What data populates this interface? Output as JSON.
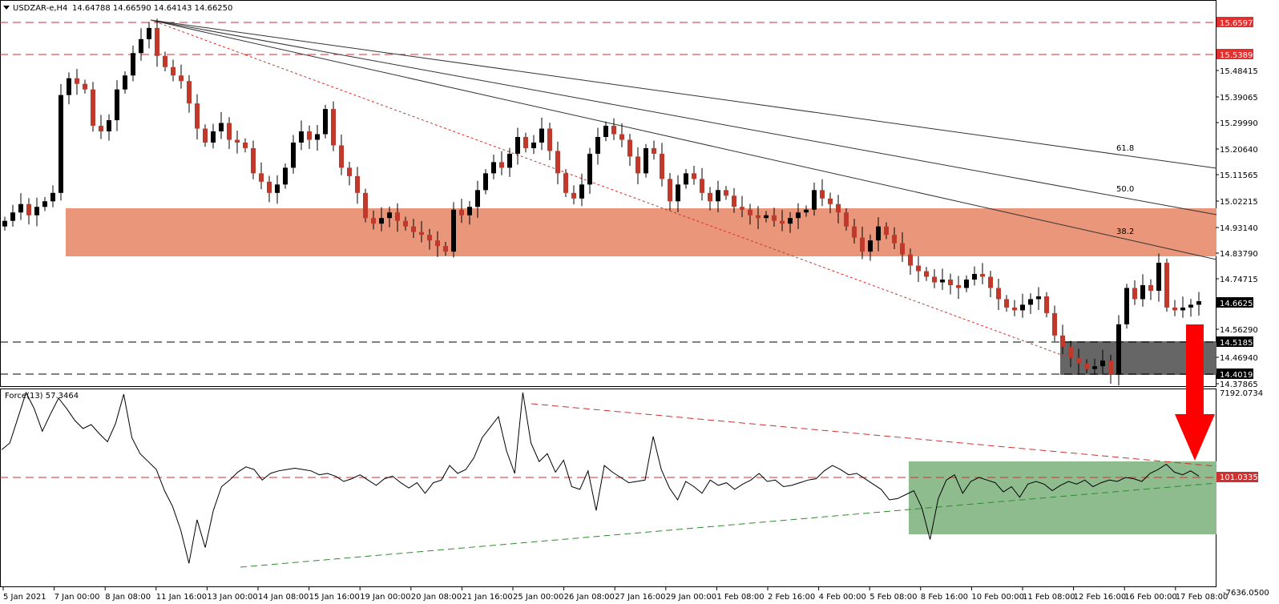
{
  "header": {
    "symbol": "USDZAR-e,H4",
    "ohlc": "14.64788 14.66590 14.64143 14.66250"
  },
  "indicator": {
    "label": "Force(13) 57.3464",
    "axis_max": "7192.0734",
    "axis_min": "-7636.0500",
    "level_label": "101.0335"
  },
  "price_axis": {
    "ticks": [
      "15.65970",
      "15.53890",
      "15.48415",
      "15.39065",
      "15.29990",
      "15.20640",
      "15.11565",
      "15.02215",
      "14.93140",
      "14.83790",
      "14.74715",
      "14.66250",
      "14.56290",
      "14.51850",
      "14.46940",
      "14.40190",
      "14.37865"
    ],
    "highlighted": [
      "15.65970",
      "15.53890",
      "14.66250",
      "14.51850",
      "14.40190"
    ]
  },
  "time_axis": {
    "labels": [
      "5 Jan 2021",
      "7 Jan 00:00",
      "8 Jan 08:00",
      "11 Jan 16:00",
      "13 Jan 00:00",
      "14 Jan 08:00",
      "15 Jan 16:00",
      "19 Jan 00:00",
      "20 Jan 08:00",
      "21 Jan 16:00",
      "25 Jan 00:00",
      "26 Jan 08:00",
      "27 Jan 16:00",
      "29 Jan 00:00",
      "1 Feb 08:00",
      "2 Feb 16:00",
      "4 Feb 00:00",
      "5 Feb 08:00",
      "8 Feb 16:00",
      "10 Feb 00:00",
      "11 Feb 08:00",
      "12 Feb 16:00",
      "16 Feb 00:00",
      "17 Feb 08:00"
    ]
  },
  "fib_labels": [
    "61.8",
    "50.0",
    "38.2"
  ],
  "colors": {
    "bull": "#000000",
    "bear": "#c0392b",
    "resistance_zone": "#e9967a",
    "support_zone": "#666666",
    "indicator_zone": "#8fbc8f",
    "level_line": "#e03030",
    "support_trend": "#2e8b2e",
    "arrow": "#ff0000"
  },
  "chart_data": {
    "type": "candlestick",
    "symbol": "USDZAR-e",
    "timeframe": "H4",
    "price_range": [
      14.36,
      15.7
    ],
    "horizontal_levels": [
      15.6597,
      15.5389,
      14.5185,
      14.4019
    ],
    "resistance_zone": [
      14.83,
      14.995
    ],
    "support_zone": [
      14.4019,
      14.5185
    ],
    "fibonacci_levels": [
      "38.2",
      "50.0",
      "61.8"
    ],
    "closes": [
      14.95,
      14.98,
      15.01,
      14.97,
      15.0,
      15.02,
      15.05,
      15.4,
      15.46,
      15.44,
      15.42,
      15.29,
      15.27,
      15.31,
      15.42,
      15.47,
      15.55,
      15.6,
      15.64,
      15.54,
      15.5,
      15.47,
      15.45,
      15.37,
      15.28,
      15.23,
      15.27,
      15.3,
      15.24,
      15.23,
      15.21,
      15.12,
      15.09,
      15.05,
      15.08,
      15.14,
      15.23,
      15.27,
      15.24,
      15.26,
      15.35,
      15.22,
      15.14,
      15.11,
      15.05,
      14.96,
      14.94,
      14.96,
      14.98,
      14.95,
      14.93,
      14.91,
      14.9,
      14.88,
      14.86,
      14.84,
      14.99,
      14.97,
      15.0,
      15.06,
      15.12,
      15.16,
      15.14,
      15.19,
      15.25,
      15.21,
      15.23,
      15.28,
      15.2,
      15.12,
      15.05,
      15.03,
      15.08,
      15.19,
      15.25,
      15.29,
      15.26,
      15.24,
      15.18,
      15.12,
      15.21,
      15.19,
      15.1,
      15.02,
      15.08,
      15.12,
      15.1,
      15.05,
      15.02,
      15.06,
      15.04,
      15.0,
      14.99,
      14.97,
      14.96,
      14.97,
      14.95,
      14.94,
      14.96,
      14.98,
      14.99,
      15.06,
      15.03,
      15.01,
      14.98,
      14.93,
      14.89,
      14.84,
      14.88,
      14.93,
      14.9,
      14.87,
      14.83,
      14.79,
      14.77,
      14.75,
      14.73,
      14.74,
      14.72,
      14.71,
      14.74,
      14.76,
      14.75,
      14.71,
      14.67,
      14.64,
      14.63,
      14.65,
      14.67,
      14.68,
      14.62,
      14.54,
      14.5,
      14.46,
      14.44,
      14.42,
      14.43,
      14.45,
      14.4,
      14.58,
      14.71,
      14.67,
      14.72,
      14.7,
      14.8,
      14.64,
      14.63,
      14.64,
      14.65,
      14.6625
    ],
    "force_index": {
      "name": "Force(13)",
      "last": 57.3464,
      "range": [
        -7636.05,
        7192.0734
      ],
      "level": 101.0335,
      "values": [
        2100,
        2600,
        4500,
        6500,
        5200,
        3500,
        4800,
        6000,
        5200,
        4300,
        3700,
        4000,
        3300,
        2700,
        4100,
        6300,
        3000,
        1800,
        1200,
        600,
        -1000,
        -2200,
        -4000,
        -6500,
        -3200,
        -5300,
        -2500,
        -700,
        -200,
        400,
        800,
        600,
        -200,
        300,
        500,
        600,
        700,
        600,
        500,
        200,
        300,
        100,
        -300,
        -100,
        200,
        -200,
        -600,
        -100,
        100,
        -400,
        -800,
        -400,
        -1200,
        -400,
        -200,
        900,
        300,
        600,
        1500,
        3000,
        3800,
        4600,
        2000,
        300,
        6600,
        2600,
        1200,
        1800,
        400,
        1300,
        -700,
        -900,
        500,
        -2500,
        900,
        400,
        0,
        -400,
        -300,
        -200,
        3100,
        600,
        -800,
        -1700,
        -300,
        -700,
        -1200,
        -200,
        -600,
        -400,
        -900,
        -500,
        -200,
        300,
        -300,
        -200,
        -700,
        -600,
        -400,
        -200,
        -100,
        500,
        900,
        600,
        200,
        300,
        -100,
        -500,
        -900,
        -1700,
        -1600,
        -1300,
        -1000,
        -2300,
        -4700,
        -1600,
        -200,
        200,
        -1200,
        -300,
        0,
        -200,
        -400,
        -1100,
        -700,
        -1500,
        -500,
        -300,
        -500,
        -1000,
        -600,
        -300,
        -500,
        -200,
        -700,
        -400,
        -200,
        -300,
        0,
        -100,
        -300,
        300,
        600,
        1000,
        400,
        200,
        500,
        100
      ]
    },
    "forecast_arrow": "down"
  }
}
